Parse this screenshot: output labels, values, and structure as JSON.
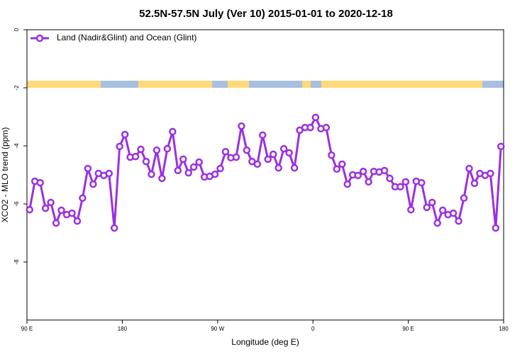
{
  "chart_data": {
    "type": "line",
    "title": "52.5N-57.5N July (Ver 10)   2015-01-01 to 2020-12-18",
    "xlabel": "Longitude (deg E)",
    "ylabel": "XCO2 - MLO trend (ppm)",
    "legend": "top-left",
    "series": [
      {
        "name": "Land (Nadir&Glint) and Ocean (Glint)",
        "color": "#9b30e0",
        "x": [
          92.5,
          97.5,
          102.5,
          107.5,
          112.5,
          117.5,
          122.5,
          127.5,
          132.5,
          137.5,
          142.5,
          147.5,
          152.5,
          157.5,
          162.5,
          167.5,
          172.5,
          177.5,
          182.5,
          187.5,
          192.5,
          197.5,
          202.5,
          207.5,
          212.5,
          217.5,
          222.5,
          227.5,
          232.5,
          237.5,
          242.5,
          247.5,
          252.5,
          257.5,
          262.5,
          267.5,
          272.5,
          277.5,
          282.5,
          287.5,
          292.5,
          297.5,
          302.5,
          307.5,
          312.5,
          317.5,
          322.5,
          327.5,
          332.5,
          337.5,
          342.5,
          347.5,
          352.5,
          357.5,
          362.5,
          367.5,
          372.5,
          377.5,
          382.5,
          387.5,
          392.5,
          397.5,
          402.5,
          407.5,
          412.5,
          417.5,
          422.5,
          427.5,
          432.5,
          437.5,
          442.5,
          447.5,
          452.5,
          457.5,
          462.5,
          467.5,
          472.5,
          477.5,
          482.5,
          487.5,
          492.5,
          497.5,
          502.5,
          507.5,
          512.5,
          517.5,
          522.5,
          527.5,
          532.5,
          537.5
        ],
        "values": [
          -6.2,
          -5.22,
          -5.27,
          -6.15,
          -5.95,
          -6.66,
          -6.22,
          -6.37,
          -6.32,
          -6.59,
          -5.8,
          -4.78,
          -5.32,
          -4.95,
          -5.02,
          -4.95,
          -6.83,
          -4.02,
          -3.61,
          -4.39,
          -4.37,
          -4.12,
          -4.54,
          -4.98,
          -4.15,
          -5.12,
          -4.1,
          -3.51,
          -4.85,
          -4.46,
          -4.93,
          -4.73,
          -4.56,
          -5.07,
          -5.05,
          -4.98,
          -4.78,
          -4.2,
          -4.41,
          -4.39,
          -3.32,
          -4.15,
          -4.54,
          -4.63,
          -3.63,
          -4.46,
          -4.29,
          -4.76,
          -4.1,
          -4.24,
          -4.76,
          -3.46,
          -3.37,
          -3.37,
          -3.02,
          -3.41,
          -3.37,
          -4.32,
          -4.8,
          -4.63,
          -5.32,
          -5.0,
          -5.02,
          -4.88,
          -5.24,
          -4.88,
          -4.9,
          -4.85,
          -5.12,
          -5.41,
          -5.41,
          -5.24,
          -6.2,
          -5.22,
          -5.27,
          -6.12,
          -5.95,
          -6.66,
          -6.22,
          -6.37,
          -6.32,
          -6.59,
          -5.8,
          -4.78,
          -5.29,
          -4.95,
          -5.02,
          -4.95,
          -6.83,
          -4.02
        ]
      }
    ],
    "xlim": [
      90,
      540
    ],
    "xticks": [
      {
        "value": 90,
        "label": "90 E"
      },
      180,
      {
        "value": 270,
        "label": "90 W"
      },
      {
        "value": 360,
        "label": "0"
      },
      {
        "value": 450,
        "label": "90 E"
      },
      {
        "value": 540,
        "label": "180"
      }
    ],
    "ylim": [
      -10,
      0
    ],
    "yticks": [
      0,
      -2,
      -4,
      -6,
      -8
    ]
  }
}
